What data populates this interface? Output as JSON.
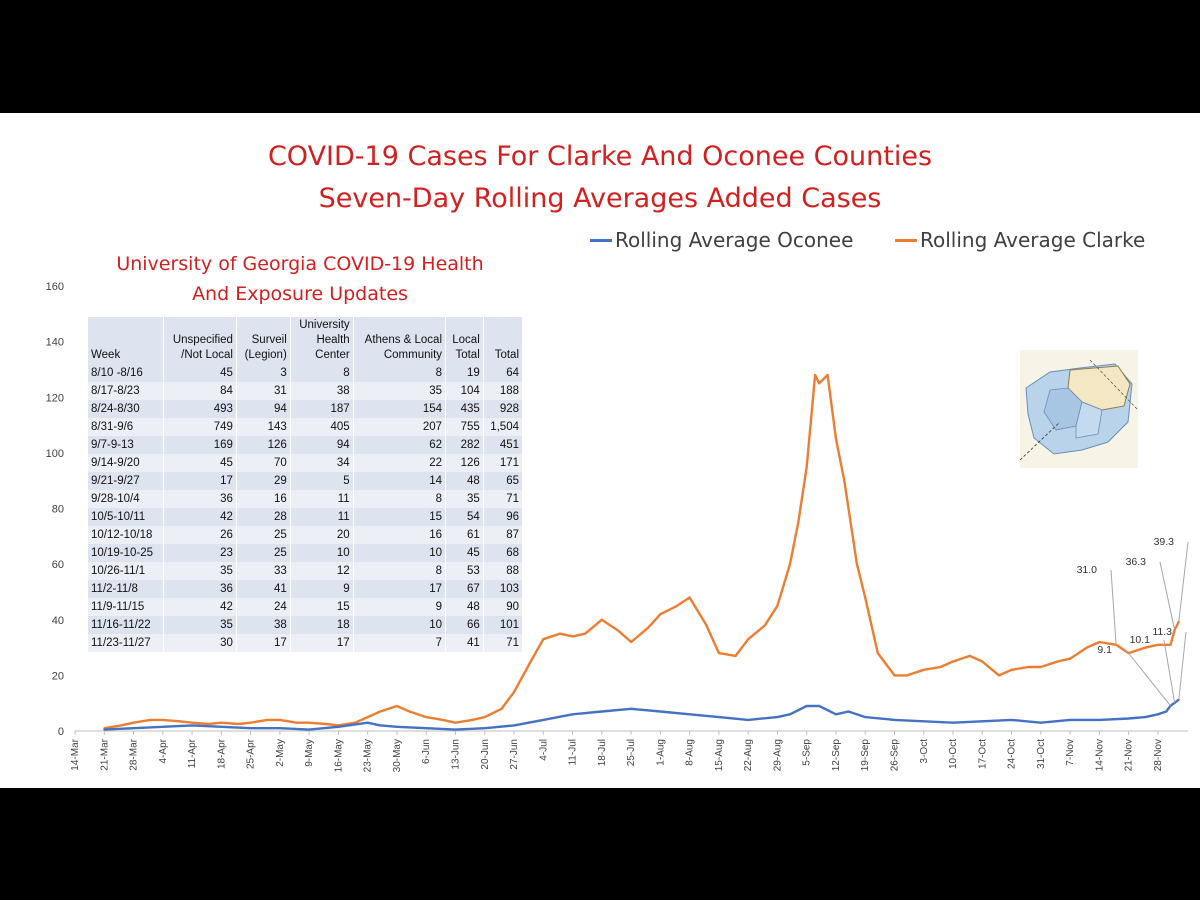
{
  "title_line1": "COVID-19 Cases For Clarke And Oconee Counties",
  "title_line2": "Seven-Day Rolling Averages Added Cases",
  "legend": {
    "oconee": "Rolling Average Oconee",
    "clarke": "Rolling Average Clarke"
  },
  "colors": {
    "oconee": "#4472c4",
    "clarke": "#ed7d31",
    "title": "#d21f1f",
    "background": "#ffffff",
    "letterbox": "#000000"
  },
  "map_icon": "county-map",
  "uga_table": {
    "title_line1": "University of Georgia COVID-19 Health",
    "title_line2": "And Exposure Updates",
    "columns": [
      {
        "l1": "",
        "l2": "",
        "l3": "Week"
      },
      {
        "l1": "",
        "l2": "Unspecified",
        "l3": "/Not Local"
      },
      {
        "l1": "",
        "l2": "Surveil",
        "l3": "(Legion)"
      },
      {
        "l1": "University",
        "l2": "Health",
        "l3": "Center"
      },
      {
        "l1": "",
        "l2": "Athens & Local",
        "l3": "Community"
      },
      {
        "l1": "",
        "l2": "Local",
        "l3": "Total"
      },
      {
        "l1": "",
        "l2": "",
        "l3": "Total"
      }
    ],
    "rows": [
      [
        "8/10 -8/16",
        "45",
        "3",
        "8",
        "8",
        "19",
        "64"
      ],
      [
        "8/17-8/23",
        "84",
        "31",
        "38",
        "35",
        "104",
        "188"
      ],
      [
        "8/24-8/30",
        "493",
        "94",
        "187",
        "154",
        "435",
        "928"
      ],
      [
        "8/31-9/6",
        "749",
        "143",
        "405",
        "207",
        "755",
        "1,504"
      ],
      [
        "9/7-9-13",
        "169",
        "126",
        "94",
        "62",
        "282",
        "451"
      ],
      [
        "9/14-9/20",
        "45",
        "70",
        "34",
        "22",
        "126",
        "171"
      ],
      [
        "9/21-9/27",
        "17",
        "29",
        "5",
        "14",
        "48",
        "65"
      ],
      [
        "9/28-10/4",
        "36",
        "16",
        "11",
        "8",
        "35",
        "71"
      ],
      [
        "10/5-10/11",
        "42",
        "28",
        "11",
        "15",
        "54",
        "96"
      ],
      [
        "10/12-10/18",
        "26",
        "25",
        "20",
        "16",
        "61",
        "87"
      ],
      [
        "10/19-10-25",
        "23",
        "25",
        "10",
        "10",
        "45",
        "68"
      ],
      [
        "10/26-11/1",
        "35",
        "33",
        "12",
        "8",
        "53",
        "88"
      ],
      [
        "11/2-11/8",
        "36",
        "41",
        "9",
        "17",
        "67",
        "103"
      ],
      [
        "11/9-11/15",
        "42",
        "24",
        "15",
        "9",
        "48",
        "90"
      ],
      [
        "11/16-11/22",
        "35",
        "38",
        "18",
        "10",
        "66",
        "101"
      ],
      [
        "11/23-11/27",
        "30",
        "17",
        "17",
        "7",
        "41",
        "71"
      ]
    ]
  },
  "chart_data": {
    "type": "line",
    "title": "COVID-19 Cases For Clarke And Oconee Counties",
    "subtitle": "Seven-Day Rolling Averages Added Cases",
    "ylim": [
      0,
      160
    ],
    "yticks": [
      "0",
      "20",
      "40",
      "60",
      "80",
      "100",
      "120",
      "140",
      "160"
    ],
    "xlim": [
      "14-Mar",
      "4-Dec"
    ],
    "xticks": [
      "14-Mar",
      "21-Mar",
      "28-Mar",
      "4-Apr",
      "11-Apr",
      "18-Apr",
      "25-Apr",
      "2-May",
      "9-May",
      "16-May",
      "23-May",
      "30-May",
      "6-Jun",
      "13-Jun",
      "20-Jun",
      "27-Jun",
      "4-Jul",
      "11-Jul",
      "18-Jul",
      "25-Jul",
      "1-Aug",
      "8-Aug",
      "15-Aug",
      "22-Aug",
      "29-Aug",
      "5-Sep",
      "12-Sep",
      "19-Sep",
      "26-Sep",
      "3-Oct",
      "10-Oct",
      "17-Oct",
      "24-Oct",
      "31-Oct",
      "7-Nov",
      "14-Nov",
      "21-Nov",
      "28-Nov"
    ],
    "grid": false,
    "legend_position": "top-right",
    "annotations": [
      "39.3",
      "36.3",
      "31.0",
      "11.3",
      "10.1",
      "9.1"
    ],
    "series": [
      {
        "name": "Rolling Average Clarke",
        "color": "#ed7d31",
        "x": [
          "21-Mar",
          "25-Mar",
          "28-Mar",
          "1-Apr",
          "4-Apr",
          "8-Apr",
          "11-Apr",
          "15-Apr",
          "18-Apr",
          "22-Apr",
          "25-Apr",
          "29-Apr",
          "2-May",
          "6-May",
          "9-May",
          "13-May",
          "16-May",
          "20-May",
          "23-May",
          "26-May",
          "30-May",
          "2-Jun",
          "6-Jun",
          "10-Jun",
          "13-Jun",
          "17-Jun",
          "20-Jun",
          "24-Jun",
          "27-Jun",
          "1-Jul",
          "4-Jul",
          "8-Jul",
          "11-Jul",
          "14-Jul",
          "18-Jul",
          "22-Jul",
          "25-Jul",
          "29-Jul",
          "1-Aug",
          "5-Aug",
          "8-Aug",
          "12-Aug",
          "15-Aug",
          "19-Aug",
          "22-Aug",
          "26-Aug",
          "29-Aug",
          "1-Sep",
          "3-Sep",
          "5-Sep",
          "7-Sep",
          "8-Sep",
          "10-Sep",
          "12-Sep",
          "14-Sep",
          "17-Sep",
          "19-Sep",
          "22-Sep",
          "26-Sep",
          "29-Sep",
          "3-Oct",
          "7-Oct",
          "10-Oct",
          "14-Oct",
          "17-Oct",
          "21-Oct",
          "24-Oct",
          "28-Oct",
          "31-Oct",
          "4-Nov",
          "7-Nov",
          "11-Nov",
          "14-Nov",
          "18-Nov",
          "21-Nov",
          "25-Nov",
          "28-Nov",
          "30-Nov",
          "1-Dec",
          "2-Dec",
          "3-Dec"
        ],
        "values": [
          1,
          2,
          3,
          4,
          4,
          3.5,
          3,
          2.5,
          3,
          2.5,
          3,
          4,
          4,
          3,
          3,
          2.5,
          2,
          3,
          5,
          7,
          9,
          7,
          5,
          4,
          3,
          4,
          5,
          8,
          14,
          25,
          33,
          35,
          34,
          35,
          40,
          36,
          32,
          37,
          42,
          45,
          48,
          38,
          28,
          27,
          33,
          38,
          45,
          60,
          75,
          95,
          128,
          125,
          128,
          105,
          90,
          60,
          48,
          28,
          20,
          20,
          22,
          23,
          25,
          27,
          25,
          20,
          22,
          23,
          23,
          25,
          26,
          30,
          32,
          31,
          28,
          30,
          31,
          31.0,
          31,
          36.3,
          39.3
        ]
      },
      {
        "name": "Rolling Average Oconee",
        "color": "#4472c4",
        "x": [
          "21-Mar",
          "28-Mar",
          "4-Apr",
          "11-Apr",
          "18-Apr",
          "25-Apr",
          "2-May",
          "9-May",
          "16-May",
          "23-May",
          "26-May",
          "30-May",
          "6-Jun",
          "13-Jun",
          "20-Jun",
          "27-Jun",
          "4-Jul",
          "11-Jul",
          "18-Jul",
          "25-Jul",
          "1-Aug",
          "8-Aug",
          "15-Aug",
          "22-Aug",
          "29-Aug",
          "1-Sep",
          "5-Sep",
          "8-Sep",
          "12-Sep",
          "15-Sep",
          "19-Sep",
          "26-Sep",
          "3-Oct",
          "10-Oct",
          "17-Oct",
          "24-Oct",
          "31-Oct",
          "7-Nov",
          "14-Nov",
          "21-Nov",
          "25-Nov",
          "28-Nov",
          "30-Nov",
          "1-Dec",
          "2-Dec",
          "3-Dec"
        ],
        "values": [
          0.5,
          1,
          1.5,
          2,
          1.5,
          1,
          1,
          0.5,
          1.5,
          3,
          2,
          1.5,
          1,
          0.5,
          1,
          2,
          4,
          6,
          7,
          8,
          7,
          6,
          5,
          4,
          5,
          6,
          9,
          9,
          6,
          7,
          5,
          4,
          3.5,
          3,
          3.5,
          4,
          3,
          4,
          4,
          4.5,
          5,
          6,
          7,
          9.1,
          10.1,
          11.3
        ]
      }
    ]
  }
}
